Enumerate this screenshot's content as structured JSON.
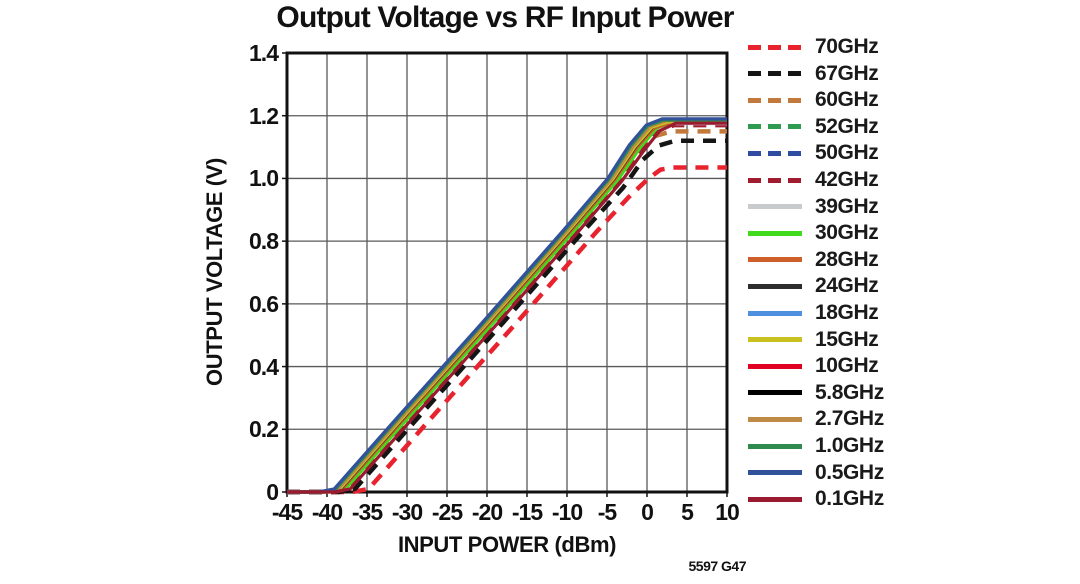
{
  "figure": {
    "title": "Output Voltage vs RF Input Power",
    "footnote": "5597 G47"
  },
  "chart_data": {
    "type": "line",
    "title": "Output Voltage vs RF Input Power",
    "xlabel": "INPUT POWER (dBm)",
    "ylabel": "OUTPUT VOLTAGE (V)",
    "xlim": [
      -45,
      10
    ],
    "ylim": [
      0,
      1.4
    ],
    "x_ticks": [
      -45,
      -40,
      -35,
      -30,
      -25,
      -20,
      -15,
      -10,
      -5,
      0,
      5,
      10
    ],
    "x_tick_labels": [
      "-45",
      "-40",
      "-35",
      "-30",
      "-25",
      "-20",
      "-15",
      "-10",
      "-5",
      "0",
      "5",
      "10"
    ],
    "y_ticks": [
      0,
      0.2,
      0.4,
      0.6,
      0.8,
      1.0,
      1.2,
      1.4
    ],
    "y_tick_labels": [
      "0",
      "0.2",
      "0.4",
      "0.6",
      "0.8",
      "1.0",
      "1.2",
      "1.4"
    ],
    "grid": true,
    "grid_color": "#58595B",
    "frame_color": "#111111",
    "legend_position": "right",
    "series": [
      {
        "name": "70GHz",
        "color": "#E8232E",
        "dash": true,
        "points": [
          [
            -45,
            0
          ],
          [
            -36.8,
            0
          ],
          [
            -34.8,
            0.01
          ],
          [
            -26.3,
            0.255
          ],
          [
            -16.3,
            0.54
          ],
          [
            -6.3,
            0.83
          ],
          [
            -2.3,
            0.94
          ],
          [
            0.2,
            1.0
          ],
          [
            1.7,
            1.028
          ],
          [
            3.2,
            1.035
          ],
          [
            10,
            1.035
          ]
        ]
      },
      {
        "name": "67GHz",
        "color": "#151515",
        "dash": true,
        "points": [
          [
            -45,
            0
          ],
          [
            -38.5,
            0
          ],
          [
            -36.5,
            0.01
          ],
          [
            -28.0,
            0.255
          ],
          [
            -18.0,
            0.54
          ],
          [
            -8.0,
            0.83
          ],
          [
            -3.0,
            0.97
          ],
          [
            -0.5,
            1.06
          ],
          [
            1.5,
            1.105
          ],
          [
            3.5,
            1.12
          ],
          [
            10,
            1.12
          ]
        ]
      },
      {
        "name": "60GHz",
        "color": "#C2793B",
        "dash": true,
        "points": [
          [
            -45,
            0
          ],
          [
            -39.5,
            0
          ],
          [
            -37.5,
            0.01
          ],
          [
            -29.0,
            0.255
          ],
          [
            -19.0,
            0.54
          ],
          [
            -9.0,
            0.83
          ],
          [
            -3.5,
            0.99
          ],
          [
            -1.0,
            1.08
          ],
          [
            1.0,
            1.135
          ],
          [
            3.0,
            1.15
          ],
          [
            10,
            1.15
          ]
        ]
      },
      {
        "name": "52GHz",
        "color": "#2F9B50",
        "dash": true,
        "points": [
          [
            -45,
            0
          ],
          [
            -40.1,
            0
          ],
          [
            -38.1,
            0.01
          ],
          [
            -29.6,
            0.255
          ],
          [
            -19.6,
            0.54
          ],
          [
            -9.6,
            0.83
          ],
          [
            -3.9,
            1.0
          ],
          [
            -1.2,
            1.1
          ],
          [
            0.9,
            1.158
          ],
          [
            2.9,
            1.175
          ],
          [
            10,
            1.175
          ]
        ]
      },
      {
        "name": "50GHz",
        "color": "#2F4DA0",
        "dash": true,
        "points": [
          [
            -45,
            0
          ],
          [
            -40.3,
            0
          ],
          [
            -38.3,
            0.01
          ],
          [
            -29.8,
            0.255
          ],
          [
            -19.8,
            0.54
          ],
          [
            -9.8,
            0.83
          ],
          [
            -4.1,
            1.0
          ],
          [
            -1.4,
            1.103
          ],
          [
            0.7,
            1.162
          ],
          [
            2.7,
            1.18
          ],
          [
            10,
            1.18
          ]
        ]
      },
      {
        "name": "42GHz",
        "color": "#A21C30",
        "dash": true,
        "points": [
          [
            -45,
            0
          ],
          [
            -39.3,
            0
          ],
          [
            -37.3,
            0.01
          ],
          [
            -28.8,
            0.255
          ],
          [
            -18.8,
            0.54
          ],
          [
            -8.8,
            0.83
          ],
          [
            -3.4,
            0.995
          ],
          [
            -0.7,
            1.09
          ],
          [
            1.4,
            1.155
          ],
          [
            3.4,
            1.17
          ],
          [
            10,
            1.17
          ]
        ]
      },
      {
        "name": "39GHz",
        "color": "#C9CACC",
        "dash": false,
        "points": [
          [
            -45,
            0
          ],
          [
            -39.9,
            0
          ],
          [
            -37.9,
            0.01
          ],
          [
            -29.4,
            0.255
          ],
          [
            -19.4,
            0.54
          ],
          [
            -9.4,
            0.83
          ],
          [
            -3.7,
            1.0
          ],
          [
            -1.0,
            1.1
          ],
          [
            1.1,
            1.158
          ],
          [
            3.1,
            1.175
          ],
          [
            10,
            1.175
          ]
        ]
      },
      {
        "name": "30GHz",
        "color": "#41DB1E",
        "dash": false,
        "points": [
          [
            -45,
            0
          ],
          [
            -39.7,
            0
          ],
          [
            -37.7,
            0.01
          ],
          [
            -29.2,
            0.255
          ],
          [
            -19.2,
            0.54
          ],
          [
            -9.2,
            0.83
          ],
          [
            -3.5,
            1.0
          ],
          [
            -0.8,
            1.1
          ],
          [
            1.3,
            1.162
          ],
          [
            3.3,
            1.18
          ],
          [
            10,
            1.18
          ]
        ]
      },
      {
        "name": "28GHz",
        "color": "#CE5F2A",
        "dash": false,
        "points": [
          [
            -45,
            0
          ],
          [
            -40.1,
            0
          ],
          [
            -38.1,
            0.01
          ],
          [
            -29.6,
            0.255
          ],
          [
            -19.6,
            0.54
          ],
          [
            -9.6,
            0.83
          ],
          [
            -3.9,
            1.0
          ],
          [
            -1.2,
            1.1
          ],
          [
            0.9,
            1.16
          ],
          [
            2.9,
            1.178
          ],
          [
            10,
            1.178
          ]
        ]
      },
      {
        "name": "24GHz",
        "color": "#2D2D2D",
        "dash": false,
        "points": [
          [
            -45,
            0
          ],
          [
            -40.3,
            0
          ],
          [
            -38.3,
            0.01
          ],
          [
            -29.8,
            0.255
          ],
          [
            -19.8,
            0.54
          ],
          [
            -9.8,
            0.83
          ],
          [
            -4.1,
            1.0
          ],
          [
            -1.4,
            1.102
          ],
          [
            0.7,
            1.163
          ],
          [
            2.7,
            1.182
          ],
          [
            10,
            1.182
          ]
        ]
      },
      {
        "name": "18GHz",
        "color": "#4E8FE0",
        "dash": false,
        "points": [
          [
            -45,
            0
          ],
          [
            -40.5,
            0
          ],
          [
            -38.5,
            0.01
          ],
          [
            -30.0,
            0.255
          ],
          [
            -20.0,
            0.54
          ],
          [
            -10.0,
            0.83
          ],
          [
            -4.3,
            1.0
          ],
          [
            -1.6,
            1.103
          ],
          [
            0.5,
            1.165
          ],
          [
            2.5,
            1.185
          ],
          [
            10,
            1.185
          ]
        ]
      },
      {
        "name": "15GHz",
        "color": "#C9C11F",
        "dash": false,
        "points": [
          [
            -45,
            0
          ],
          [
            -40.4,
            0
          ],
          [
            -38.4,
            0.01
          ],
          [
            -29.9,
            0.255
          ],
          [
            -19.9,
            0.54
          ],
          [
            -9.9,
            0.83
          ],
          [
            -4.2,
            1.0
          ],
          [
            -1.5,
            1.102
          ],
          [
            0.6,
            1.163
          ],
          [
            2.6,
            1.18
          ],
          [
            10,
            1.18
          ]
        ]
      },
      {
        "name": "10GHz",
        "color": "#E00020",
        "dash": false,
        "points": [
          [
            -45,
            0
          ],
          [
            -40.8,
            0
          ],
          [
            -38.8,
            0.01
          ],
          [
            -30.3,
            0.255
          ],
          [
            -20.3,
            0.54
          ],
          [
            -10.3,
            0.83
          ],
          [
            -4.6,
            1.0
          ],
          [
            -1.9,
            1.105
          ],
          [
            0.2,
            1.168
          ],
          [
            2.2,
            1.187
          ],
          [
            10,
            1.187
          ]
        ]
      },
      {
        "name": "5.8GHz",
        "color": "#000000",
        "dash": false,
        "points": [
          [
            -45,
            0
          ],
          [
            -40.7,
            0
          ],
          [
            -38.7,
            0.01
          ],
          [
            -30.2,
            0.255
          ],
          [
            -20.2,
            0.54
          ],
          [
            -10.2,
            0.83
          ],
          [
            -4.5,
            1.0
          ],
          [
            -1.8,
            1.104
          ],
          [
            0.3,
            1.167
          ],
          [
            2.3,
            1.186
          ],
          [
            10,
            1.186
          ]
        ]
      },
      {
        "name": "2.7GHz",
        "color": "#BF8A45",
        "dash": false,
        "points": [
          [
            -45,
            0
          ],
          [
            -40.6,
            0
          ],
          [
            -38.6,
            0.01
          ],
          [
            -30.1,
            0.255
          ],
          [
            -20.1,
            0.54
          ],
          [
            -10.1,
            0.83
          ],
          [
            -4.4,
            1.0
          ],
          [
            -1.7,
            1.103
          ],
          [
            0.4,
            1.166
          ],
          [
            2.4,
            1.184
          ],
          [
            10,
            1.184
          ]
        ]
      },
      {
        "name": "1.0GHz",
        "color": "#2F8B4D",
        "dash": false,
        "points": [
          [
            -45,
            0
          ],
          [
            -40.9,
            0
          ],
          [
            -38.9,
            0.01
          ],
          [
            -30.4,
            0.255
          ],
          [
            -20.4,
            0.54
          ],
          [
            -10.4,
            0.83
          ],
          [
            -4.7,
            1.0
          ],
          [
            -2.0,
            1.105
          ],
          [
            0.1,
            1.168
          ],
          [
            2.1,
            1.186
          ],
          [
            10,
            1.186
          ]
        ]
      },
      {
        "name": "0.5GHz",
        "color": "#32519B",
        "dash": false,
        "points": [
          [
            -45,
            0
          ],
          [
            -41.1,
            0
          ],
          [
            -39.1,
            0.01
          ],
          [
            -30.6,
            0.255
          ],
          [
            -20.6,
            0.54
          ],
          [
            -10.6,
            0.83
          ],
          [
            -4.9,
            1.0
          ],
          [
            -2.2,
            1.107
          ],
          [
            -0.1,
            1.17
          ],
          [
            1.9,
            1.19
          ],
          [
            10,
            1.19
          ]
        ]
      },
      {
        "name": "0.1GHz",
        "color": "#9A1B2F",
        "dash": false,
        "points": [
          [
            -45,
            0
          ],
          [
            -39.1,
            0
          ],
          [
            -37.1,
            0.01
          ],
          [
            -28.6,
            0.255
          ],
          [
            -18.6,
            0.54
          ],
          [
            -8.6,
            0.83
          ],
          [
            -3.2,
            0.99
          ],
          [
            -0.5,
            1.085
          ],
          [
            1.6,
            1.152
          ],
          [
            3.6,
            1.176
          ],
          [
            10,
            1.176
          ]
        ]
      }
    ]
  }
}
